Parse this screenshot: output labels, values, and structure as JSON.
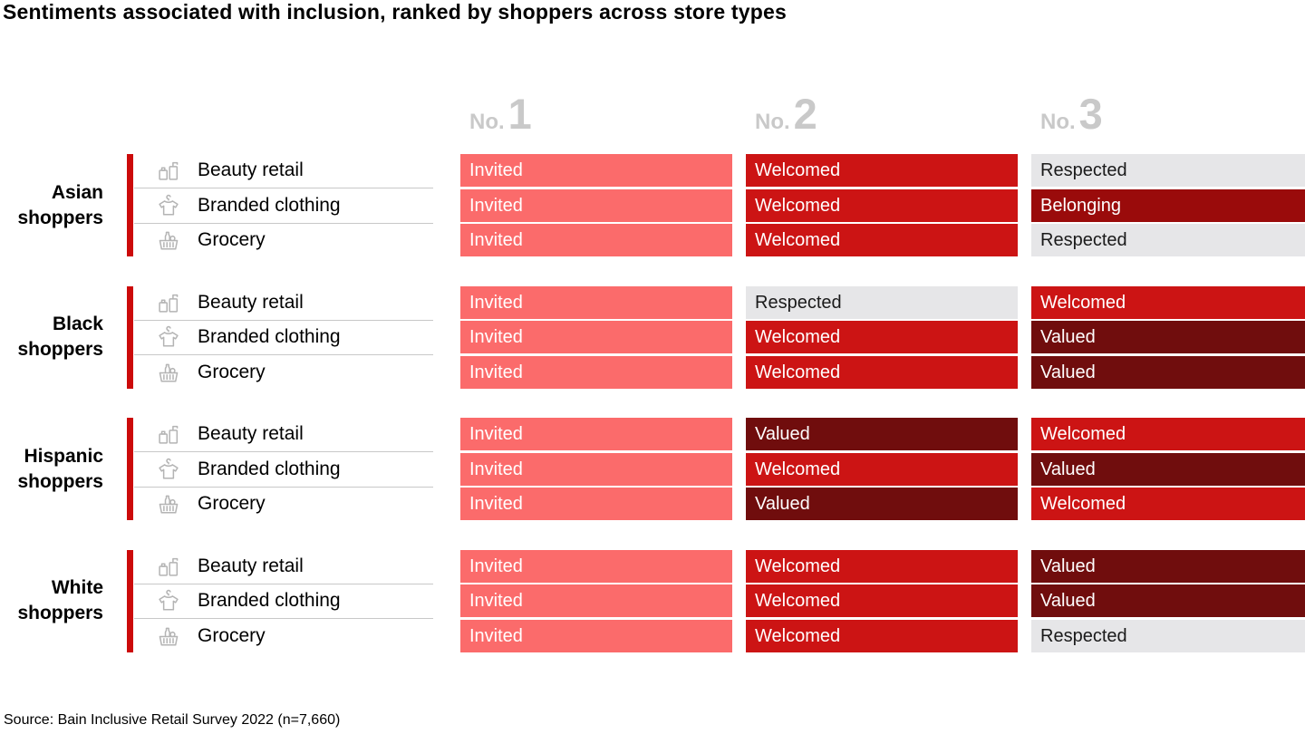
{
  "title": "Sentiments associated with inclusion, ranked by shoppers across store types",
  "source": "Source: Bain Inclusive Retail Survey 2022 (n=7,660)",
  "chart_data": {
    "type": "table",
    "title": "Sentiments associated with inclusion, ranked by shoppers across store types",
    "columns": [
      "No. 1",
      "No. 2",
      "No. 3"
    ],
    "store_type_icons": {
      "Beauty retail": "beauty-products-icon",
      "Branded clothing": "tshirt-hanger-icon",
      "Grocery": "grocery-basket-icon"
    },
    "groups": [
      {
        "shopper_group": "Asian shoppers",
        "rows": [
          {
            "store_type": "Beauty retail",
            "rankings": [
              "Invited",
              "Welcomed",
              "Respected"
            ]
          },
          {
            "store_type": "Branded clothing",
            "rankings": [
              "Invited",
              "Welcomed",
              "Belonging"
            ]
          },
          {
            "store_type": "Grocery",
            "rankings": [
              "Invited",
              "Welcomed",
              "Respected"
            ]
          }
        ]
      },
      {
        "shopper_group": "Black shoppers",
        "rows": [
          {
            "store_type": "Beauty retail",
            "rankings": [
              "Invited",
              "Respected",
              "Welcomed"
            ]
          },
          {
            "store_type": "Branded clothing",
            "rankings": [
              "Invited",
              "Welcomed",
              "Valued"
            ]
          },
          {
            "store_type": "Grocery",
            "rankings": [
              "Invited",
              "Welcomed",
              "Valued"
            ]
          }
        ]
      },
      {
        "shopper_group": "Hispanic shoppers",
        "rows": [
          {
            "store_type": "Beauty retail",
            "rankings": [
              "Invited",
              "Valued",
              "Welcomed"
            ]
          },
          {
            "store_type": "Branded clothing",
            "rankings": [
              "Invited",
              "Welcomed",
              "Valued"
            ]
          },
          {
            "store_type": "Grocery",
            "rankings": [
              "Invited",
              "Valued",
              "Welcomed"
            ]
          }
        ]
      },
      {
        "shopper_group": "White shoppers",
        "rows": [
          {
            "store_type": "Beauty retail",
            "rankings": [
              "Invited",
              "Welcomed",
              "Valued"
            ]
          },
          {
            "store_type": "Branded clothing",
            "rankings": [
              "Invited",
              "Welcomed",
              "Valued"
            ]
          },
          {
            "store_type": "Grocery",
            "rankings": [
              "Invited",
              "Welcomed",
              "Respected"
            ]
          }
        ]
      }
    ],
    "sentiment_colors": {
      "Invited": "#FB6B6B",
      "Welcomed": "#CC1414",
      "Belonging": "#9A0B0B",
      "Valued": "#700D0D",
      "Respected": "#E6E6E8"
    },
    "sentiment_text_colors": {
      "Invited": "#FFFFFF",
      "Welcomed": "#FFFFFF",
      "Belonging": "#FFFFFF",
      "Valued": "#FFFFFF",
      "Respected": "#1A1A1A"
    },
    "accent_bar_color": "#CC0A0A",
    "header_color": "#C9C9C9",
    "source": "Source: Bain Inclusive Retail Survey 2022 (n=7,660)"
  }
}
